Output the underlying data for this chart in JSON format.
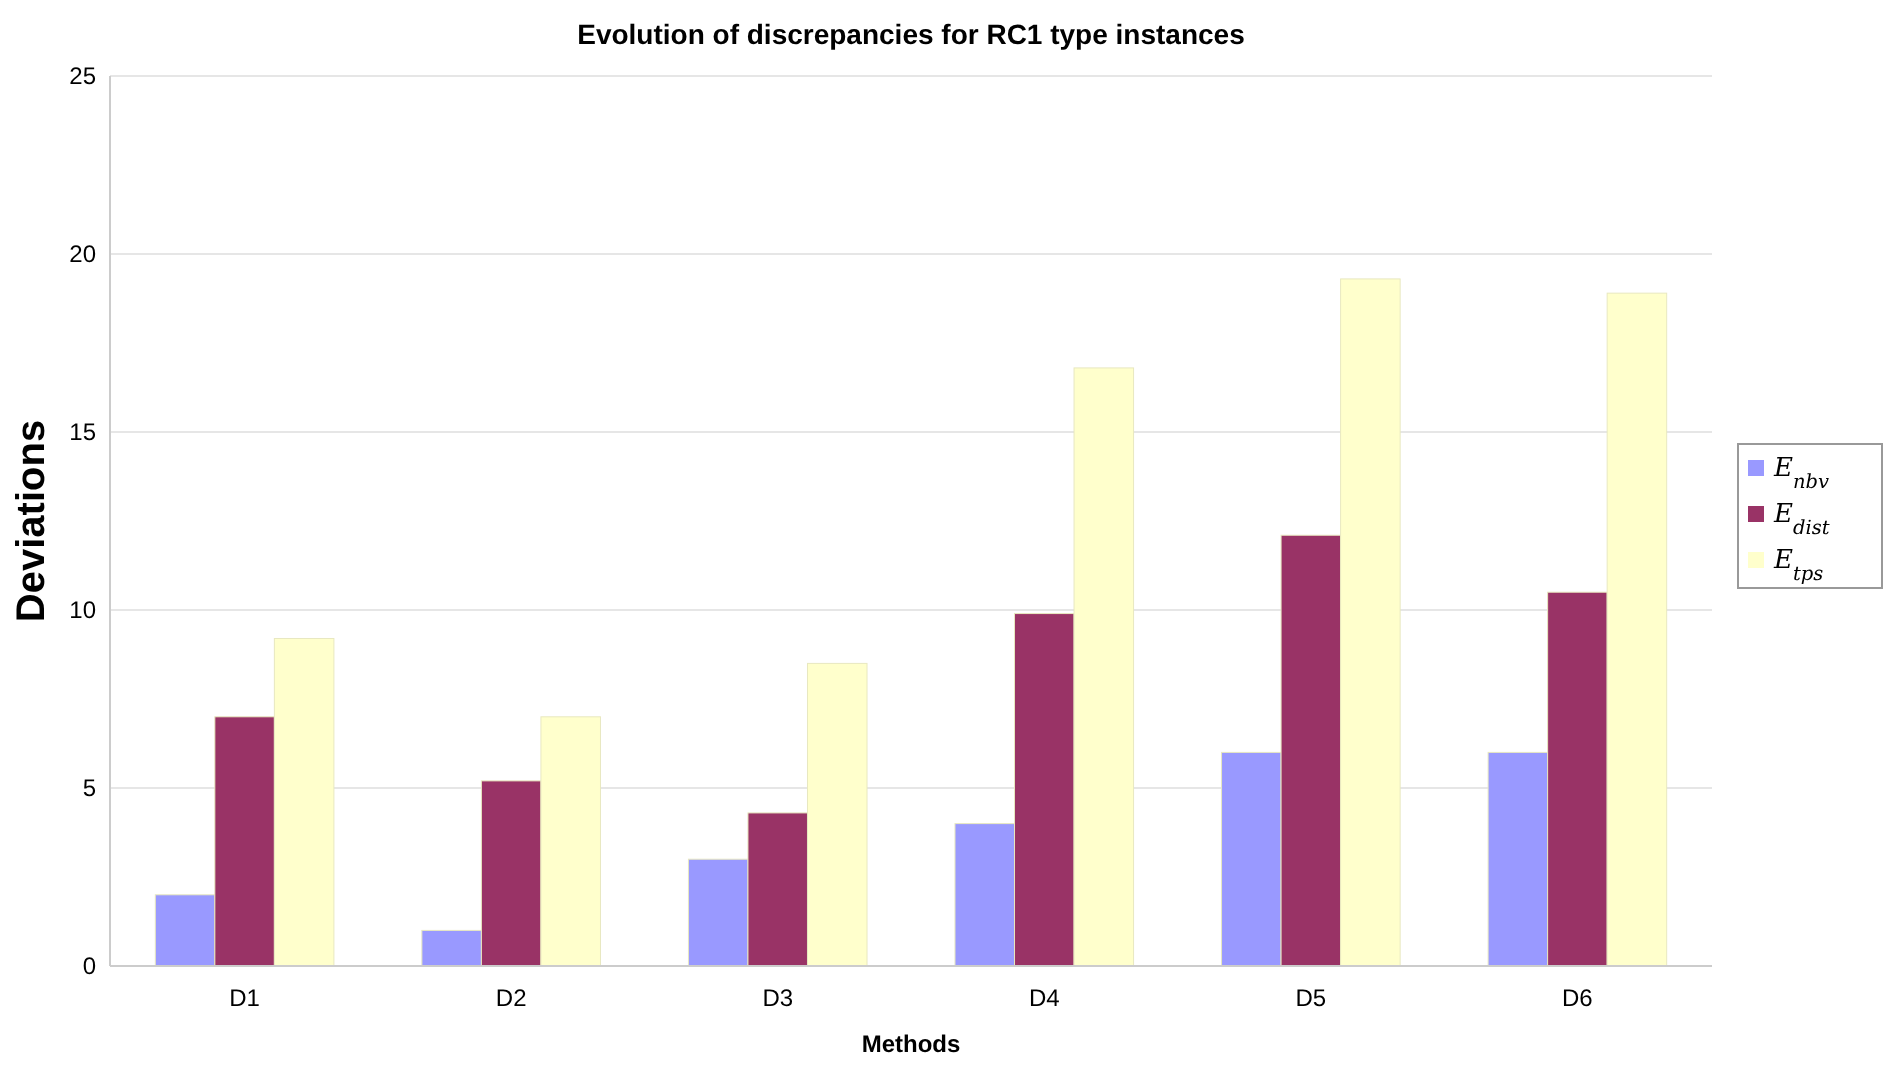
{
  "chart_data": {
    "type": "bar",
    "title": "Evolution of discrepancies for RC1 type instances",
    "xlabel": "Methods",
    "ylabel": "Deviations",
    "categories": [
      "D1",
      "D2",
      "D3",
      "D4",
      "D5",
      "D6"
    ],
    "series": [
      {
        "name": "E$_{nbv}$",
        "color": "#9999ff",
        "values": [
          2,
          1,
          3,
          4,
          6,
          6
        ]
      },
      {
        "name": "E$_{dist}$",
        "color": "#993366",
        "values": [
          7,
          5.2,
          4.3,
          9.9,
          12.1,
          10.5
        ]
      },
      {
        "name": "E$_{tps}$",
        "color": "#ffffcc",
        "values": [
          9.2,
          7,
          8.5,
          16.8,
          19.3,
          18.9
        ]
      }
    ],
    "ylim": [
      0,
      25
    ],
    "yticks": [
      0,
      5,
      10,
      15,
      20,
      25
    ],
    "grid": "y",
    "legend": "right"
  }
}
